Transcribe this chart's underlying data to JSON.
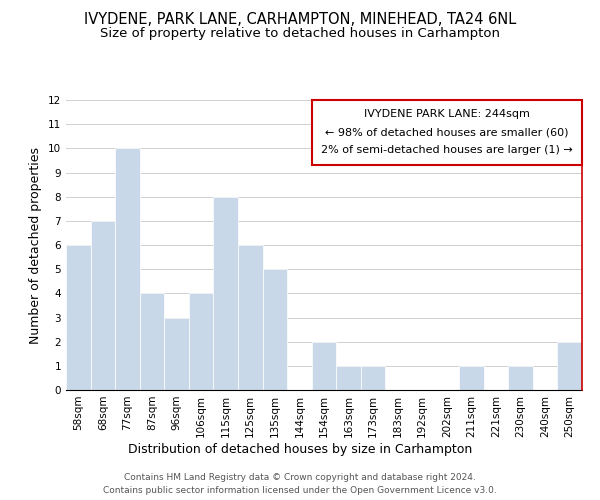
{
  "title": "IVYDENE, PARK LANE, CARHAMPTON, MINEHEAD, TA24 6NL",
  "subtitle": "Size of property relative to detached houses in Carhampton",
  "xlabel": "Distribution of detached houses by size in Carhampton",
  "ylabel": "Number of detached properties",
  "bar_labels": [
    "58sqm",
    "68sqm",
    "77sqm",
    "87sqm",
    "96sqm",
    "106sqm",
    "115sqm",
    "125sqm",
    "135sqm",
    "144sqm",
    "154sqm",
    "163sqm",
    "173sqm",
    "183sqm",
    "192sqm",
    "202sqm",
    "211sqm",
    "221sqm",
    "230sqm",
    "240sqm",
    "250sqm"
  ],
  "bar_heights": [
    6,
    7,
    10,
    4,
    3,
    4,
    8,
    6,
    5,
    0,
    2,
    1,
    1,
    0,
    0,
    0,
    1,
    0,
    1,
    0,
    2
  ],
  "bar_color": "#c8d8e8",
  "highlight_line_color": "#cc0000",
  "ylim": [
    0,
    12
  ],
  "yticks": [
    0,
    1,
    2,
    3,
    4,
    5,
    6,
    7,
    8,
    9,
    10,
    11,
    12
  ],
  "annotation_title": "IVYDENE PARK LANE: 244sqm",
  "annotation_line1": "← 98% of detached houses are smaller (60)",
  "annotation_line2": "2% of semi-detached houses are larger (1) →",
  "footer_line1": "Contains HM Land Registry data © Crown copyright and database right 2024.",
  "footer_line2": "Contains public sector information licensed under the Open Government Licence v3.0.",
  "title_fontsize": 10.5,
  "subtitle_fontsize": 9.5,
  "axis_label_fontsize": 9,
  "tick_fontsize": 7.5,
  "annotation_fontsize": 8,
  "footer_fontsize": 6.5
}
